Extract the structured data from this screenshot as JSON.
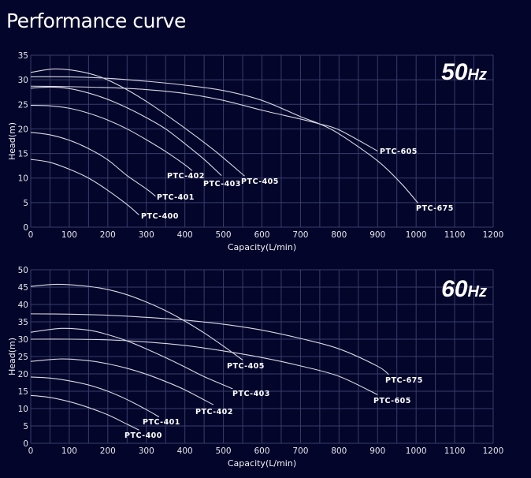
{
  "page_title": "Performance curve",
  "chart_data": [
    {
      "type": "line",
      "title": "50Hz",
      "xlabel": "Capacity(L/min)",
      "ylabel": "Head(m)",
      "xlim": [
        0,
        1200
      ],
      "ylim": [
        0,
        35
      ],
      "xticks": [
        0,
        100,
        200,
        300,
        400,
        500,
        600,
        700,
        800,
        900,
        1000,
        1100,
        1200
      ],
      "yticks": [
        0,
        5,
        10,
        15,
        20,
        25,
        30,
        35
      ],
      "grid": true,
      "series": [
        {
          "name": "PTC-400",
          "x": [
            0,
            50,
            100,
            150,
            200,
            250,
            281
          ],
          "y": [
            13.8,
            13.2,
            11.8,
            10,
            7.5,
            4.6,
            2.5
          ]
        },
        {
          "name": "PTC-401",
          "x": [
            0,
            50,
            100,
            150,
            200,
            250,
            300,
            324
          ],
          "y": [
            19.3,
            18.8,
            17.7,
            16,
            13.7,
            10.5,
            7.8,
            6.3
          ]
        },
        {
          "name": "PTC-402",
          "x": [
            0,
            50,
            100,
            150,
            200,
            250,
            300,
            350,
            400,
            419
          ],
          "y": [
            24.8,
            24.7,
            24.2,
            23.2,
            21.8,
            20,
            17.8,
            15.4,
            12.7,
            11.5
          ]
        },
        {
          "name": "PTC-403",
          "x": [
            0,
            50,
            100,
            150,
            200,
            250,
            300,
            350,
            400,
            450,
            495
          ],
          "y": [
            28.3,
            28.5,
            28.2,
            27.3,
            26,
            24.3,
            22.3,
            20,
            17,
            13.8,
            10.5
          ]
        },
        {
          "name": "PTC-405",
          "x": [
            0,
            60,
            120,
            180,
            240,
            300,
            360,
            420,
            480,
            555
          ],
          "y": [
            31.5,
            32.2,
            31.8,
            30.6,
            28.4,
            25.6,
            22.4,
            19,
            15.4,
            10.4
          ]
        },
        {
          "name": "PTC-605",
          "x": [
            0,
            100,
            200,
            300,
            400,
            500,
            600,
            700,
            750,
            800,
            900
          ],
          "y": [
            28.7,
            28.6,
            28.4,
            28,
            27.2,
            25.8,
            23.8,
            22,
            21,
            19.8,
            15.5
          ]
        },
        {
          "name": "PTC-675",
          "x": [
            0,
            100,
            200,
            300,
            400,
            500,
            600,
            700,
            750,
            800,
            900,
            960,
            1005
          ],
          "y": [
            30.6,
            30.6,
            30.3,
            29.7,
            28.9,
            27.8,
            25.8,
            22.5,
            21,
            19,
            13.5,
            9,
            4.9
          ]
        }
      ]
    },
    {
      "type": "line",
      "title": "60Hz",
      "xlabel": "Capacity(L/min)",
      "ylabel": "Head(m)",
      "xlim": [
        0,
        1200
      ],
      "ylim": [
        0,
        50
      ],
      "xticks": [
        0,
        100,
        200,
        300,
        400,
        500,
        600,
        700,
        800,
        900,
        1000,
        1100,
        1200
      ],
      "yticks": [
        0,
        5,
        10,
        15,
        20,
        25,
        30,
        35,
        40,
        45,
        50
      ],
      "grid": true,
      "series": [
        {
          "name": "PTC-400",
          "x": [
            0,
            50,
            100,
            150,
            200,
            250,
            281
          ],
          "y": [
            13.8,
            13.2,
            12,
            10.3,
            8.2,
            5.5,
            3.8
          ]
        },
        {
          "name": "PTC-401",
          "x": [
            0,
            50,
            100,
            150,
            200,
            250,
            300,
            333
          ],
          "y": [
            19.1,
            18.8,
            18,
            16.8,
            15,
            12.6,
            9.7,
            7.6
          ]
        },
        {
          "name": "PTC-402",
          "x": [
            0,
            80,
            150,
            200,
            250,
            300,
            350,
            400,
            474
          ],
          "y": [
            23.6,
            24.3,
            23.8,
            22.9,
            21.6,
            19.9,
            17.8,
            15.4,
            11.1
          ]
        },
        {
          "name": "PTC-403",
          "x": [
            0,
            80,
            150,
            200,
            250,
            300,
            350,
            400,
            450,
            524
          ],
          "y": [
            32,
            33.1,
            32.6,
            31.3,
            29.5,
            27.2,
            24.7,
            22,
            19.2,
            15.7
          ]
        },
        {
          "name": "PTC-405",
          "x": [
            0,
            70,
            150,
            200,
            250,
            300,
            350,
            400,
            450,
            500,
            550
          ],
          "y": [
            45.2,
            45.8,
            45.2,
            44.3,
            42.8,
            40.7,
            38.2,
            35.2,
            31.8,
            28,
            24
          ]
        },
        {
          "name": "PTC-605",
          "x": [
            0,
            100,
            200,
            300,
            400,
            500,
            600,
            700,
            800,
            900
          ],
          "y": [
            30,
            30,
            29.8,
            29.2,
            28.2,
            26.6,
            24.7,
            22.3,
            19.3,
            14
          ]
        },
        {
          "name": "PTC-675",
          "x": [
            0,
            100,
            200,
            300,
            400,
            500,
            600,
            700,
            800,
            900,
            929
          ],
          "y": [
            37.3,
            37.2,
            36.9,
            36.3,
            35.5,
            34.3,
            32.6,
            30.2,
            27.2,
            22.2,
            19.8
          ]
        }
      ]
    }
  ]
}
